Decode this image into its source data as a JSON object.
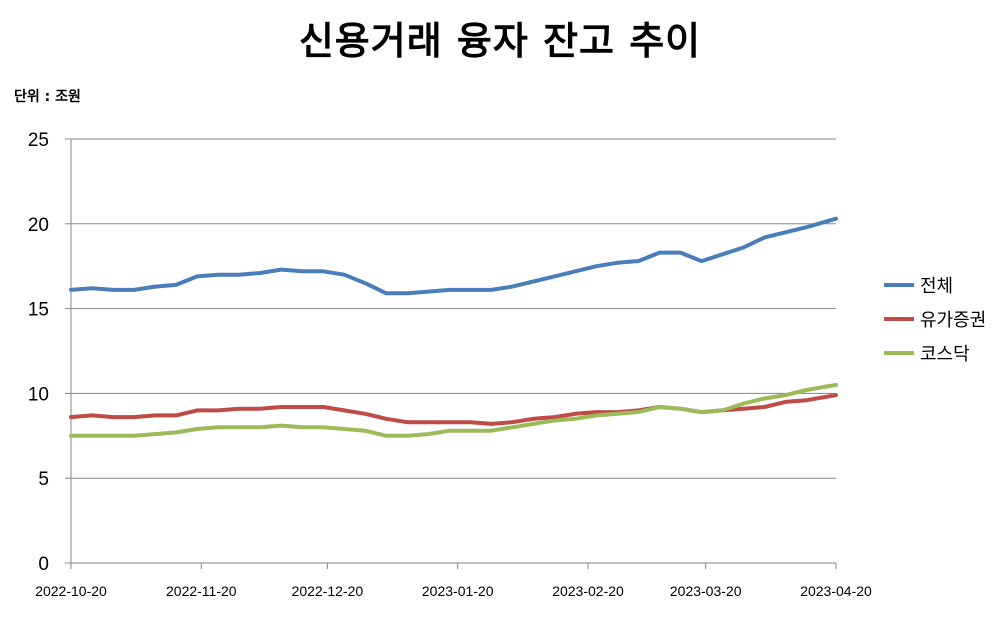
{
  "chart_data": {
    "type": "line",
    "title": "신용거래 융자 잔고 추이",
    "unit_label": "단위 : 조원",
    "xlabel": "",
    "ylabel": "",
    "ylim": [
      0,
      25
    ],
    "y_ticks": [
      0,
      5,
      10,
      15,
      20,
      25
    ],
    "x_ticks": [
      "2022-10-20",
      "2022-11-20",
      "2022-12-20",
      "2023-01-20",
      "2023-02-20",
      "2023-03-20",
      "2023-04-20"
    ],
    "x_range": [
      "2022-10-20",
      "2023-04-20"
    ],
    "grid": "horizontal",
    "legend_position": "right",
    "series": [
      {
        "name": "전체",
        "color": "#4a7ebb",
        "points": [
          [
            "2022-10-20",
            16.1
          ],
          [
            "2022-10-25",
            16.2
          ],
          [
            "2022-10-30",
            16.1
          ],
          [
            "2022-11-04",
            16.1
          ],
          [
            "2022-11-09",
            16.3
          ],
          [
            "2022-11-14",
            16.4
          ],
          [
            "2022-11-19",
            16.9
          ],
          [
            "2022-11-24",
            17.0
          ],
          [
            "2022-11-29",
            17.0
          ],
          [
            "2022-12-04",
            17.1
          ],
          [
            "2022-12-09",
            17.3
          ],
          [
            "2022-12-14",
            17.2
          ],
          [
            "2022-12-19",
            17.2
          ],
          [
            "2022-12-24",
            17.0
          ],
          [
            "2022-12-29",
            16.5
          ],
          [
            "2023-01-03",
            15.9
          ],
          [
            "2023-01-08",
            15.9
          ],
          [
            "2023-01-13",
            16.0
          ],
          [
            "2023-01-18",
            16.1
          ],
          [
            "2023-01-23",
            16.1
          ],
          [
            "2023-01-28",
            16.1
          ],
          [
            "2023-02-02",
            16.3
          ],
          [
            "2023-02-07",
            16.6
          ],
          [
            "2023-02-12",
            16.9
          ],
          [
            "2023-02-17",
            17.2
          ],
          [
            "2023-02-22",
            17.5
          ],
          [
            "2023-02-27",
            17.7
          ],
          [
            "2023-03-04",
            17.8
          ],
          [
            "2023-03-09",
            18.3
          ],
          [
            "2023-03-14",
            18.3
          ],
          [
            "2023-03-19",
            17.8
          ],
          [
            "2023-03-24",
            18.2
          ],
          [
            "2023-03-29",
            18.6
          ],
          [
            "2023-04-03",
            19.2
          ],
          [
            "2023-04-08",
            19.5
          ],
          [
            "2023-04-13",
            19.8
          ],
          [
            "2023-04-20",
            20.3
          ]
        ]
      },
      {
        "name": "유가증권",
        "color": "#be4b48",
        "points": [
          [
            "2022-10-20",
            8.6
          ],
          [
            "2022-10-25",
            8.7
          ],
          [
            "2022-10-30",
            8.6
          ],
          [
            "2022-11-04",
            8.6
          ],
          [
            "2022-11-09",
            8.7
          ],
          [
            "2022-11-14",
            8.7
          ],
          [
            "2022-11-19",
            9.0
          ],
          [
            "2022-11-24",
            9.0
          ],
          [
            "2022-11-29",
            9.1
          ],
          [
            "2022-12-04",
            9.1
          ],
          [
            "2022-12-09",
            9.2
          ],
          [
            "2022-12-14",
            9.2
          ],
          [
            "2022-12-19",
            9.2
          ],
          [
            "2022-12-24",
            9.0
          ],
          [
            "2022-12-29",
            8.8
          ],
          [
            "2023-01-03",
            8.5
          ],
          [
            "2023-01-08",
            8.3
          ],
          [
            "2023-01-13",
            8.3
          ],
          [
            "2023-01-18",
            8.3
          ],
          [
            "2023-01-23",
            8.3
          ],
          [
            "2023-01-28",
            8.2
          ],
          [
            "2023-02-02",
            8.3
          ],
          [
            "2023-02-07",
            8.5
          ],
          [
            "2023-02-12",
            8.6
          ],
          [
            "2023-02-17",
            8.8
          ],
          [
            "2023-02-22",
            8.9
          ],
          [
            "2023-02-27",
            8.9
          ],
          [
            "2023-03-04",
            9.0
          ],
          [
            "2023-03-09",
            9.2
          ],
          [
            "2023-03-14",
            9.1
          ],
          [
            "2023-03-19",
            8.9
          ],
          [
            "2023-03-24",
            9.0
          ],
          [
            "2023-03-29",
            9.1
          ],
          [
            "2023-04-03",
            9.2
          ],
          [
            "2023-04-08",
            9.5
          ],
          [
            "2023-04-13",
            9.6
          ],
          [
            "2023-04-20",
            9.9
          ]
        ]
      },
      {
        "name": "코스닥",
        "color": "#9bbb59",
        "points": [
          [
            "2022-10-20",
            7.5
          ],
          [
            "2022-10-25",
            7.5
          ],
          [
            "2022-10-30",
            7.5
          ],
          [
            "2022-11-04",
            7.5
          ],
          [
            "2022-11-09",
            7.6
          ],
          [
            "2022-11-14",
            7.7
          ],
          [
            "2022-11-19",
            7.9
          ],
          [
            "2022-11-24",
            8.0
          ],
          [
            "2022-11-29",
            8.0
          ],
          [
            "2022-12-04",
            8.0
          ],
          [
            "2022-12-09",
            8.1
          ],
          [
            "2022-12-14",
            8.0
          ],
          [
            "2022-12-19",
            8.0
          ],
          [
            "2022-12-24",
            7.9
          ],
          [
            "2022-12-29",
            7.8
          ],
          [
            "2023-01-03",
            7.5
          ],
          [
            "2023-01-08",
            7.5
          ],
          [
            "2023-01-13",
            7.6
          ],
          [
            "2023-01-18",
            7.8
          ],
          [
            "2023-01-23",
            7.8
          ],
          [
            "2023-01-28",
            7.8
          ],
          [
            "2023-02-02",
            8.0
          ],
          [
            "2023-02-07",
            8.2
          ],
          [
            "2023-02-12",
            8.4
          ],
          [
            "2023-02-17",
            8.5
          ],
          [
            "2023-02-22",
            8.7
          ],
          [
            "2023-02-27",
            8.8
          ],
          [
            "2023-03-04",
            8.9
          ],
          [
            "2023-03-09",
            9.2
          ],
          [
            "2023-03-14",
            9.1
          ],
          [
            "2023-03-19",
            8.9
          ],
          [
            "2023-03-24",
            9.0
          ],
          [
            "2023-03-29",
            9.4
          ],
          [
            "2023-04-03",
            9.7
          ],
          [
            "2023-04-08",
            9.9
          ],
          [
            "2023-04-13",
            10.2
          ],
          [
            "2023-04-20",
            10.5
          ]
        ]
      }
    ]
  }
}
